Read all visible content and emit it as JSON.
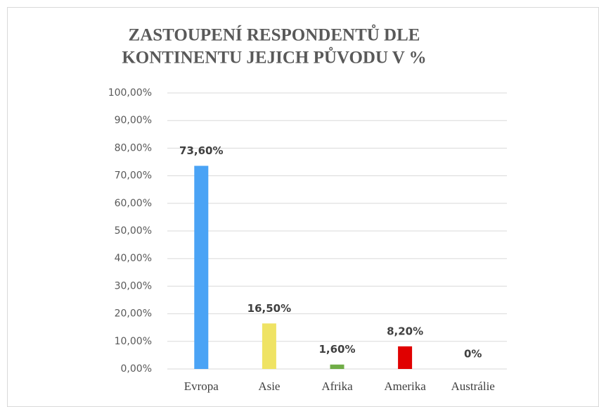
{
  "chart_data": {
    "type": "bar",
    "title": [
      "ZASTOUPENÍ RESPONDENTŮ DLE",
      "KONTINENTU JEJICH PŮVODU V %"
    ],
    "categories": [
      "Evropa",
      "Asie",
      "Afrika",
      "Amerika",
      "Austrálie"
    ],
    "values": [
      73.6,
      16.5,
      1.6,
      8.2,
      0
    ],
    "value_labels": [
      "73,60%",
      "16,50%",
      "1,60%",
      "8,20%",
      "0%"
    ],
    "colors": [
      "#4aa3f5",
      "#efe364",
      "#70ad47",
      "#e00000",
      "#a5a5a5"
    ],
    "ylim": [
      0,
      100
    ],
    "yticks": [
      {
        "value": 0,
        "label": "0,00%"
      },
      {
        "value": 10,
        "label": "10,00%"
      },
      {
        "value": 20,
        "label": "20,00%"
      },
      {
        "value": 30,
        "label": "30,00%"
      },
      {
        "value": 40,
        "label": "40,00%"
      },
      {
        "value": 50,
        "label": "50,00%"
      },
      {
        "value": 60,
        "label": "60,00%"
      },
      {
        "value": 70,
        "label": "70,00%"
      },
      {
        "value": 80,
        "label": "80,00%"
      },
      {
        "value": 90,
        "label": "90,00%"
      },
      {
        "value": 100,
        "label": "100,00%"
      }
    ],
    "grid": true
  }
}
